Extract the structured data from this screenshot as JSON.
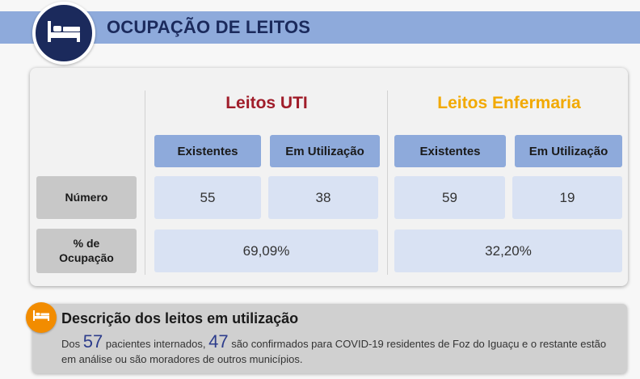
{
  "header": {
    "title": "OCUPAÇÃO DE LEITOS",
    "icon": "bed-icon",
    "circle_color": "#1b2a5c",
    "band_color": "#8eaadb"
  },
  "table": {
    "uti": {
      "title": "Leitos UTI",
      "color": "#a01d2a",
      "col_existentes": "Existentes",
      "col_em_utilizacao": "Em Utilização",
      "numero_existentes": "55",
      "numero_em_utilizacao": "38",
      "ocupacao": "69,09%"
    },
    "enfermaria": {
      "title": "Leitos Enfermaria",
      "color": "#f2a900",
      "col_existentes": "Existentes",
      "col_em_utilizacao": "Em Utilização",
      "numero_existentes": "59",
      "numero_em_utilizacao": "19",
      "ocupacao": "32,20%"
    },
    "row_numero": "Número",
    "row_ocupacao_line1": "% de",
    "row_ocupacao_line2": "Ocupação"
  },
  "description": {
    "icon": "bed-icon",
    "icon_color": "#f28c00",
    "title": "Descrição dos leitos em utilização",
    "text_prefix": "Dos",
    "num_internados": "57",
    "text_mid1": "pacientes internados,",
    "num_confirmados": "47",
    "text_mid2": "são confirmados para COVID-19 residentes de Foz do Iguaçu e o restante estão em análise ou são moradores de outros municípios."
  }
}
